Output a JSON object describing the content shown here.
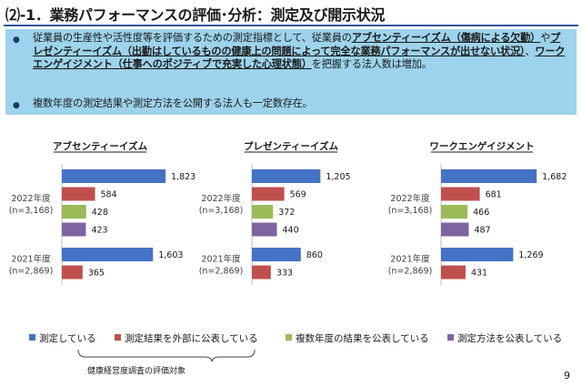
{
  "slide": {
    "title": "⑵-1．業務パフォーマンスの評価･分析：測定及び開示状況",
    "page_number": "9",
    "target_note": "健康経営度調査の評価対象"
  },
  "summary": {
    "bullet1": [
      {
        "t": "従業員の生産性や活性度等を評価するための測定指標として、従業員の",
        "hl": false
      },
      {
        "t": "アブセンティーイズム（傷病による欠勤）",
        "hl": true
      },
      {
        "t": "や",
        "hl": false
      },
      {
        "t": "プレゼンティーイズム（出勤はしているものの健康上の問題によって完全な業務パフォーマンスが出せない状況）",
        "hl": true
      },
      {
        "t": "、",
        "hl": false
      },
      {
        "t": "ワークエンゲイジメント（仕事へのポジティブで充実した心理状態）",
        "hl": true
      },
      {
        "t": "を把握する法人数は増加。",
        "hl": false
      }
    ],
    "bullet2": "複数年度の測定結果や測定方法を公開する法人も一定数存在。"
  },
  "colors": {
    "measured": "#4472c4",
    "external": "#c0504d",
    "multi_year": "#9bbb59",
    "method": "#8064a2",
    "accent": "#2f5597"
  },
  "legend": [
    {
      "label": "測定している",
      "color": "#4472c4"
    },
    {
      "label": "測定結果を外部に公表している",
      "color": "#c0504d"
    },
    {
      "label": "複数年度の結果を公表している",
      "color": "#9bbb59"
    },
    {
      "label": "測定方法を公表している",
      "color": "#8064a2"
    }
  ],
  "chart_data": [
    {
      "type": "bar",
      "orientation": "horizontal",
      "title": "アブセンティーイズム",
      "groups": [
        {
          "label": "2022年度",
          "sub": "(n=3,168)",
          "values": [
            1823,
            584,
            428,
            423
          ]
        },
        {
          "label": "2021年度",
          "sub": "(n=2,869)",
          "values": [
            1603,
            365
          ]
        }
      ],
      "series": [
        "測定している",
        "測定結果を外部に公表している",
        "複数年度の結果を公表している",
        "測定方法を公表している"
      ],
      "xlim": [
        0,
        2000
      ],
      "grid": false
    },
    {
      "type": "bar",
      "orientation": "horizontal",
      "title": "プレゼンティーイズム",
      "groups": [
        {
          "label": "2022年度",
          "sub": "(n=3,168)",
          "values": [
            1205,
            569,
            372,
            440
          ]
        },
        {
          "label": "2021年度",
          "sub": "(n=2,869)",
          "values": [
            860,
            333
          ]
        }
      ],
      "series": [
        "測定している",
        "測定結果を外部に公表している",
        "複数年度の結果を公表している",
        "測定方法を公表している"
      ],
      "xlim": [
        0,
        2000
      ],
      "grid": false
    },
    {
      "type": "bar",
      "orientation": "horizontal",
      "title": "ワークエンゲイジメント",
      "groups": [
        {
          "label": "2022年度",
          "sub": "(n=3,168)",
          "values": [
            1682,
            681,
            466,
            487
          ]
        },
        {
          "label": "2021年度",
          "sub": "(n=2,869)",
          "values": [
            1269,
            431
          ]
        }
      ],
      "series": [
        "測定している",
        "測定結果を外部に公表している",
        "複数年度の結果を公表している",
        "測定方法を公表している"
      ],
      "xlim": [
        0,
        2000
      ],
      "grid": false
    }
  ]
}
